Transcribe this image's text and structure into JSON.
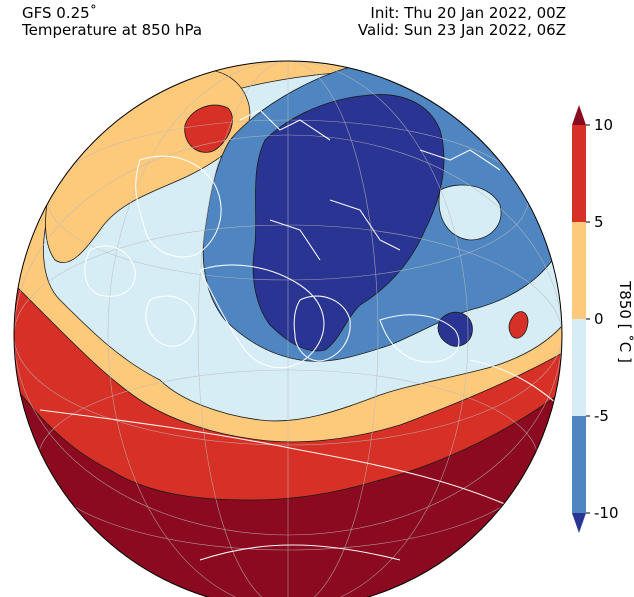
{
  "header": {
    "model": "GFS 0.25˚",
    "field": "Temperature at 850 hPa",
    "init": "Init: Thu 20 Jan 2022, 00Z",
    "valid": "Valid: Sun 23 Jan 2022, 06Z"
  },
  "colorbar": {
    "label": "T850 [ ˚C ]",
    "ticks": [
      "10",
      "5",
      "0",
      "-5",
      "-10"
    ],
    "levels": [
      {
        "range": "> 10",
        "color": "#8b0a1f"
      },
      {
        "range": "5 to 10",
        "color": "#d73027"
      },
      {
        "range": "0 to 5",
        "color": "#fdc97a"
      },
      {
        "range": "-5 to 0",
        "color": "#d6edf5"
      },
      {
        "range": "-10 to -5",
        "color": "#4f86c2"
      },
      {
        "range": "< -10",
        "color": "#2a3593"
      }
    ]
  },
  "map": {
    "projection": "orthographic",
    "region": "Europe",
    "coastline_color": "#ffffff",
    "contour_color": "#1a1a1a"
  }
}
